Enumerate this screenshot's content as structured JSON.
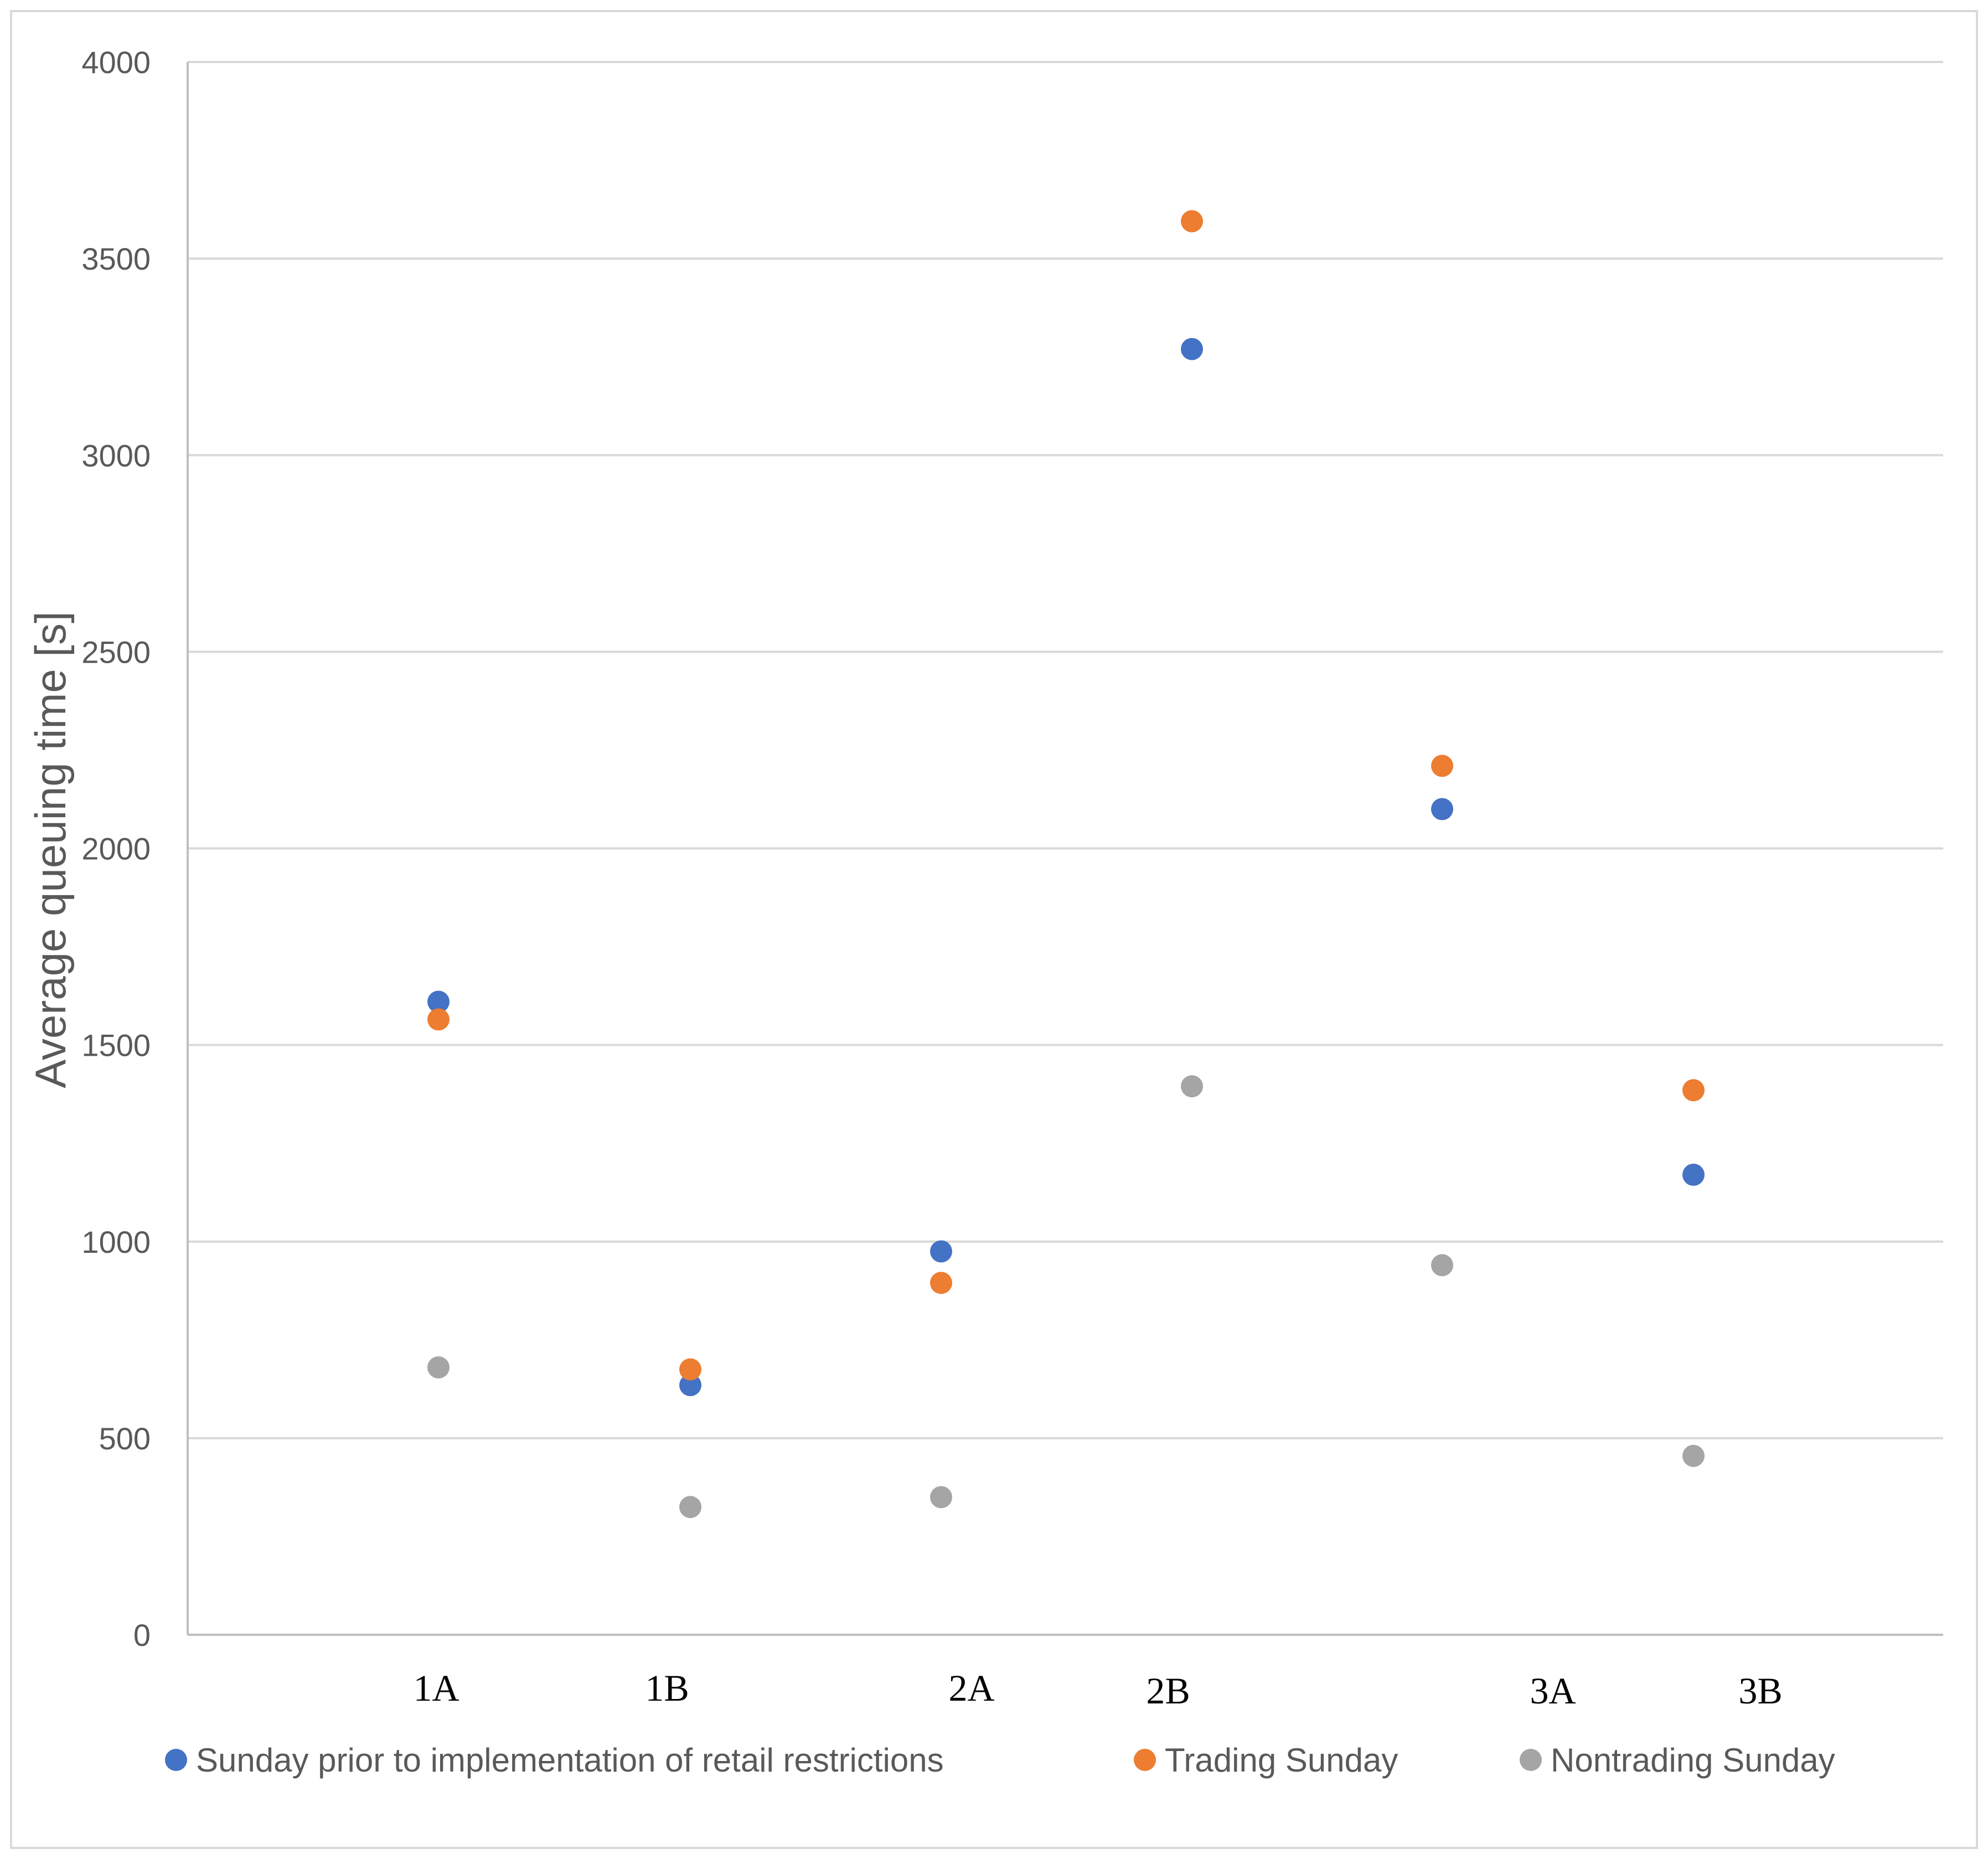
{
  "chart_data": {
    "type": "scatter",
    "title": "",
    "xlabel": "",
    "ylabel": "Average queuing time [s]",
    "ylim": [
      0,
      4000
    ],
    "yticks": [
      0,
      500,
      1000,
      1500,
      2000,
      2500,
      3000,
      3500,
      4000
    ],
    "grid": true,
    "legend_position": "bottom",
    "categories": [
      "1A",
      "1B",
      "2A",
      "2B",
      "3A",
      "3B"
    ],
    "series": [
      {
        "name": "Sunday prior to implementation of retail restrictions",
        "color": "#4472c4",
        "values": [
          1610,
          635,
          975,
          3270,
          2100,
          1170
        ]
      },
      {
        "name": "Trading Sunday",
        "color": "#ed7d31",
        "values": [
          1565,
          675,
          895,
          3595,
          2210,
          1385
        ]
      },
      {
        "name": "Nontrading Sunday",
        "color": "#a5a5a5",
        "values": [
          680,
          325,
          350,
          1395,
          940,
          455
        ]
      }
    ]
  }
}
